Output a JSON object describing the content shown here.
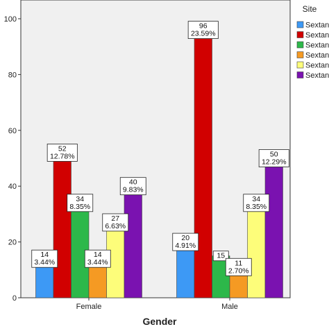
{
  "chart_data": {
    "type": "bar",
    "xlabel": "Gender",
    "ylabel": "",
    "categories": [
      "Female",
      "Male"
    ],
    "ylim": [
      0,
      105
    ],
    "yticks": [
      0,
      20,
      40,
      60,
      80,
      100
    ],
    "grid": false,
    "legend": {
      "title": "Site",
      "placement": "right"
    },
    "series": [
      {
        "name": "Sextan",
        "color": "#3d99f5",
        "values": [
          14,
          20
        ],
        "labels": [
          "3.44%",
          "4.91%"
        ]
      },
      {
        "name": "Sextan",
        "color": "#d10000",
        "values": [
          52,
          96
        ],
        "labels": [
          "12.78%",
          "23.59%"
        ]
      },
      {
        "name": "Sextan",
        "color": "#2db84a",
        "values": [
          34,
          15
        ],
        "labels": [
          "8.35%",
          ""
        ]
      },
      {
        "name": "Sextan",
        "color": "#f59a23",
        "values": [
          14,
          11
        ],
        "labels": [
          "3.44%",
          "2.70%"
        ]
      },
      {
        "name": "Sextan",
        "color": "#fdfd7a",
        "values": [
          27,
          34
        ],
        "labels": [
          "6.63%",
          "8.35%"
        ]
      },
      {
        "name": "Sextan",
        "color": "#7a12b0",
        "values": [
          40,
          50
        ],
        "labels": [
          "9.83%",
          "12.29%"
        ]
      }
    ]
  }
}
